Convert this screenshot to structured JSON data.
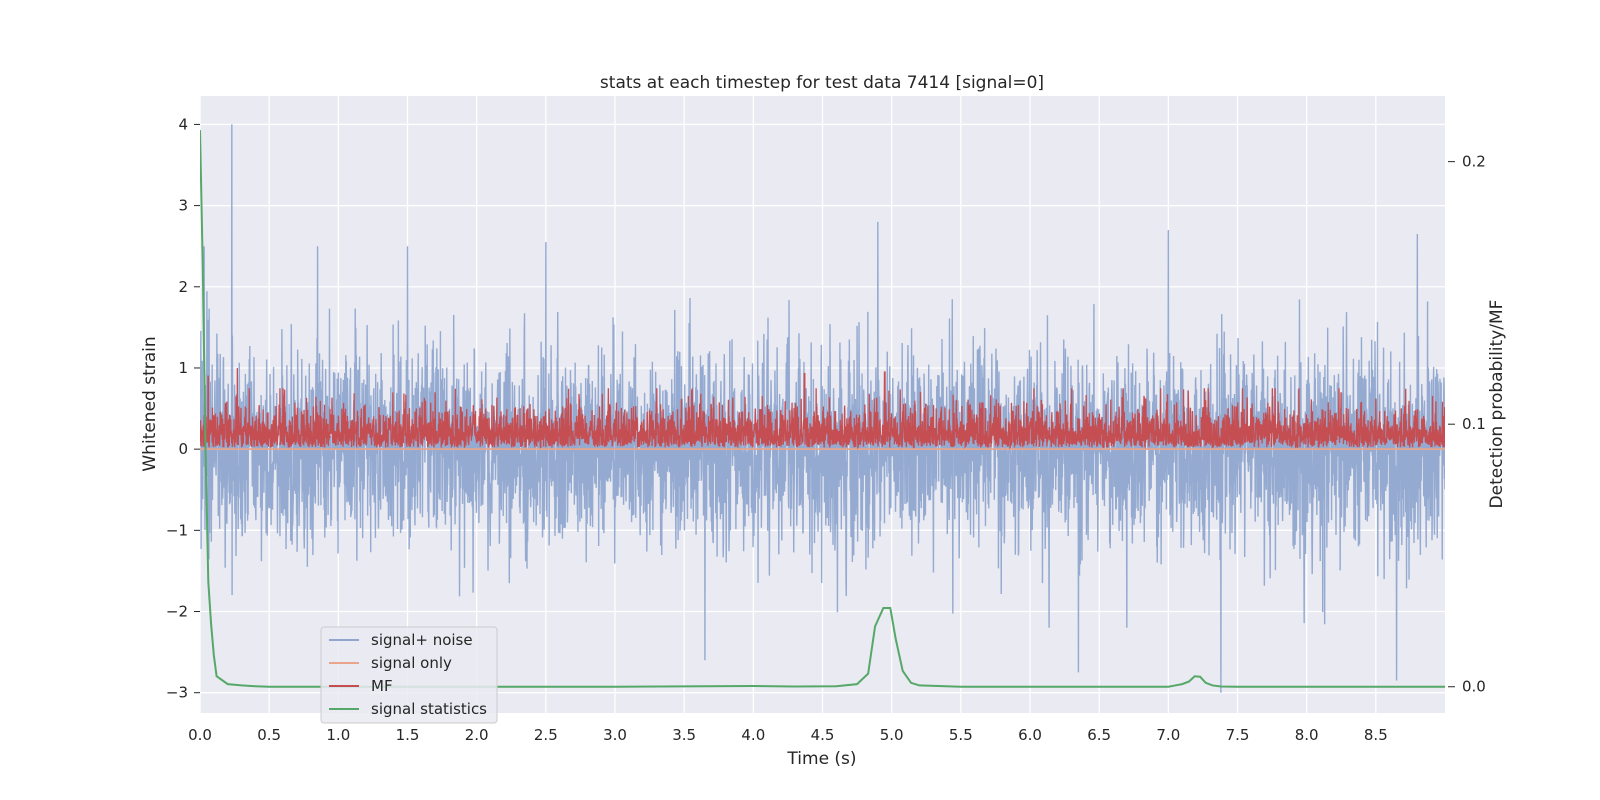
{
  "chart_data": {
    "type": "line",
    "title": "stats at each timestep for test data 7414 [signal=0]",
    "xlabel": "Time (s)",
    "ylabel": "Whitened strain",
    "ylabel_right": "Detection probability/MF",
    "xlim": [
      0.0,
      9.0
    ],
    "ylim": [
      -3.25,
      4.35
    ],
    "ylim_right": [
      -0.01,
      0.225
    ],
    "x_ticks": [
      0.0,
      0.5,
      1.0,
      1.5,
      2.0,
      2.5,
      3.0,
      3.5,
      4.0,
      4.5,
      5.0,
      5.5,
      6.0,
      6.5,
      7.0,
      7.5,
      8.0,
      8.5
    ],
    "x_tick_labels": [
      "0.0",
      "0.5",
      "1.0",
      "1.5",
      "2.0",
      "2.5",
      "3.0",
      "3.5",
      "4.0",
      "4.5",
      "5.0",
      "5.5",
      "6.0",
      "6.5",
      "7.0",
      "7.5",
      "8.0",
      "8.5"
    ],
    "y_ticks": [
      -3,
      -2,
      -1,
      0,
      1,
      2,
      3,
      4
    ],
    "y_tick_labels": [
      "−3",
      "−2",
      "−1",
      "0",
      "1",
      "2",
      "3",
      "4"
    ],
    "y_ticks_right": [
      0.0,
      0.1,
      0.2
    ],
    "y_tick_labels_right": [
      "0.0",
      "0.1",
      "0.2"
    ],
    "grid": true,
    "legend_position": "lower-left",
    "legend": [
      "signal+ noise",
      "signal only",
      "MF",
      "signal statistics"
    ],
    "colors": {
      "signal_noise": "#8fa6cf",
      "signal_only": "#e8a58c",
      "mf": "#c44e52",
      "signal_statistics": "#55a868",
      "background": "#eaeaf2",
      "grid": "#ffffff"
    },
    "series": [
      {
        "name": "signal+ noise",
        "axis": "left",
        "style": "dense noise, roughly symmetric about 0",
        "x_range": [
          0.0,
          9.0
        ],
        "typical_range": [
          -1.6,
          1.5
        ],
        "extremes": [
          {
            "x": 0.23,
            "y": 4.0
          },
          {
            "x": 0.03,
            "y": 2.5
          },
          {
            "x": 0.85,
            "y": 2.5
          },
          {
            "x": 1.5,
            "y": 2.5
          },
          {
            "x": 2.5,
            "y": 2.55
          },
          {
            "x": 4.9,
            "y": 2.8
          },
          {
            "x": 7.0,
            "y": 2.7
          },
          {
            "x": 8.8,
            "y": 2.65
          },
          {
            "x": 3.65,
            "y": -2.6
          },
          {
            "x": 6.35,
            "y": -2.75
          },
          {
            "x": 7.38,
            "y": -3.0
          },
          {
            "x": 8.65,
            "y": -2.85
          }
        ]
      },
      {
        "name": "signal only",
        "axis": "left",
        "x": [
          0.0,
          9.0
        ],
        "y": [
          0.0,
          0.0
        ]
      },
      {
        "name": "MF",
        "axis": "left",
        "style": "dense positive trace",
        "x_range": [
          0.0,
          9.0
        ],
        "typical_range": [
          0.0,
          0.65
        ],
        "extremes": [
          {
            "x": 0.27,
            "y": 1.0
          },
          {
            "x": 4.37,
            "y": 0.93
          },
          {
            "x": 4.95,
            "y": 0.95
          },
          {
            "x": 0.06,
            "y": 0.9
          }
        ]
      },
      {
        "name": "signal statistics",
        "axis": "right",
        "x": [
          0.0,
          0.02,
          0.04,
          0.06,
          0.08,
          0.1,
          0.12,
          0.2,
          0.3,
          0.4,
          0.5,
          1.0,
          2.0,
          3.0,
          4.0,
          4.3,
          4.6,
          4.75,
          4.83,
          4.88,
          4.94,
          4.99,
          5.03,
          5.08,
          5.14,
          5.2,
          5.5,
          6.0,
          6.5,
          7.0,
          7.05,
          7.1,
          7.15,
          7.19,
          7.23,
          7.27,
          7.32,
          7.38,
          7.5,
          8.0,
          8.5,
          9.0
        ],
        "y": [
          0.212,
          0.16,
          0.09,
          0.04,
          0.024,
          0.012,
          0.004,
          0.001,
          0.0005,
          0.0002,
          0.0,
          0.0,
          0.0,
          0.0,
          0.0003,
          0.0001,
          0.0002,
          0.001,
          0.005,
          0.023,
          0.03,
          0.03,
          0.018,
          0.006,
          0.0015,
          0.0005,
          0.0,
          0.0,
          0.0,
          0.0,
          0.0005,
          0.001,
          0.002,
          0.004,
          0.0038,
          0.0015,
          0.0005,
          0.0001,
          0.0,
          0.0,
          0.0,
          0.0
        ]
      }
    ]
  }
}
